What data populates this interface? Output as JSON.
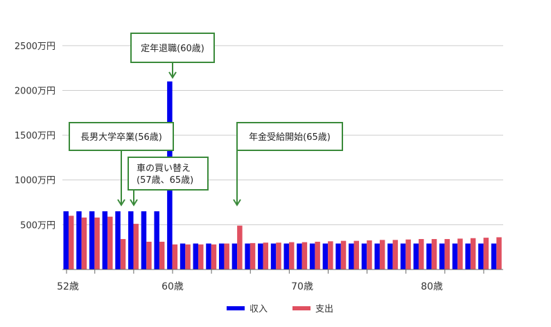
{
  "chart_data": {
    "type": "bar",
    "title": "",
    "xlabel": "",
    "ylabel": "",
    "ylim": [
      0,
      2700
    ],
    "y_ticks": [
      {
        "value": 500,
        "label": "500万円"
      },
      {
        "value": 1000,
        "label": "1000万円"
      },
      {
        "value": 1500,
        "label": "1500万円"
      },
      {
        "value": 2000,
        "label": "2000万円"
      },
      {
        "value": 2500,
        "label": "2500万円"
      }
    ],
    "x_tick_labels": [
      {
        "age": 52,
        "label": "52歳"
      },
      {
        "age": 60,
        "label": "60歳"
      },
      {
        "age": 70,
        "label": "70歳"
      },
      {
        "age": 80,
        "label": "80歳"
      }
    ],
    "categories": [
      52,
      53,
      54,
      55,
      56,
      57,
      58,
      59,
      60,
      61,
      62,
      63,
      64,
      65,
      66,
      67,
      68,
      69,
      70,
      71,
      72,
      73,
      74,
      75,
      76,
      77,
      78,
      79,
      80,
      81,
      82,
      83,
      84,
      85
    ],
    "series": [
      {
        "name": "収入",
        "color": "#0000ee",
        "values": [
          650,
          650,
          650,
          650,
          650,
          650,
          650,
          650,
          2100,
          290,
          290,
          290,
          290,
          290,
          290,
          290,
          290,
          290,
          290,
          290,
          290,
          290,
          290,
          290,
          290,
          290,
          290,
          290,
          290,
          290,
          290,
          290,
          290,
          290
        ]
      },
      {
        "name": "支出",
        "color": "#e05060",
        "values": [
          600,
          580,
          580,
          590,
          340,
          510,
          310,
          310,
          280,
          280,
          280,
          280,
          290,
          490,
          295,
          300,
          300,
          305,
          305,
          310,
          315,
          320,
          320,
          325,
          330,
          330,
          335,
          340,
          340,
          340,
          345,
          350,
          355,
          360
        ]
      }
    ],
    "legend_position": "bottom",
    "grid": true,
    "annotations": [
      {
        "text": [
          "長男大学卒業(56歳)"
        ],
        "age": 56
      },
      {
        "text": [
          "車の買い替え",
          "(57歳、65歳)"
        ],
        "age": 57
      },
      {
        "text": [
          "定年退職(60歳)"
        ],
        "age": 60
      },
      {
        "text": [
          "年金受給開始(65歳)"
        ],
        "age": 65
      }
    ],
    "annotation_color": "#3a8a3a"
  }
}
